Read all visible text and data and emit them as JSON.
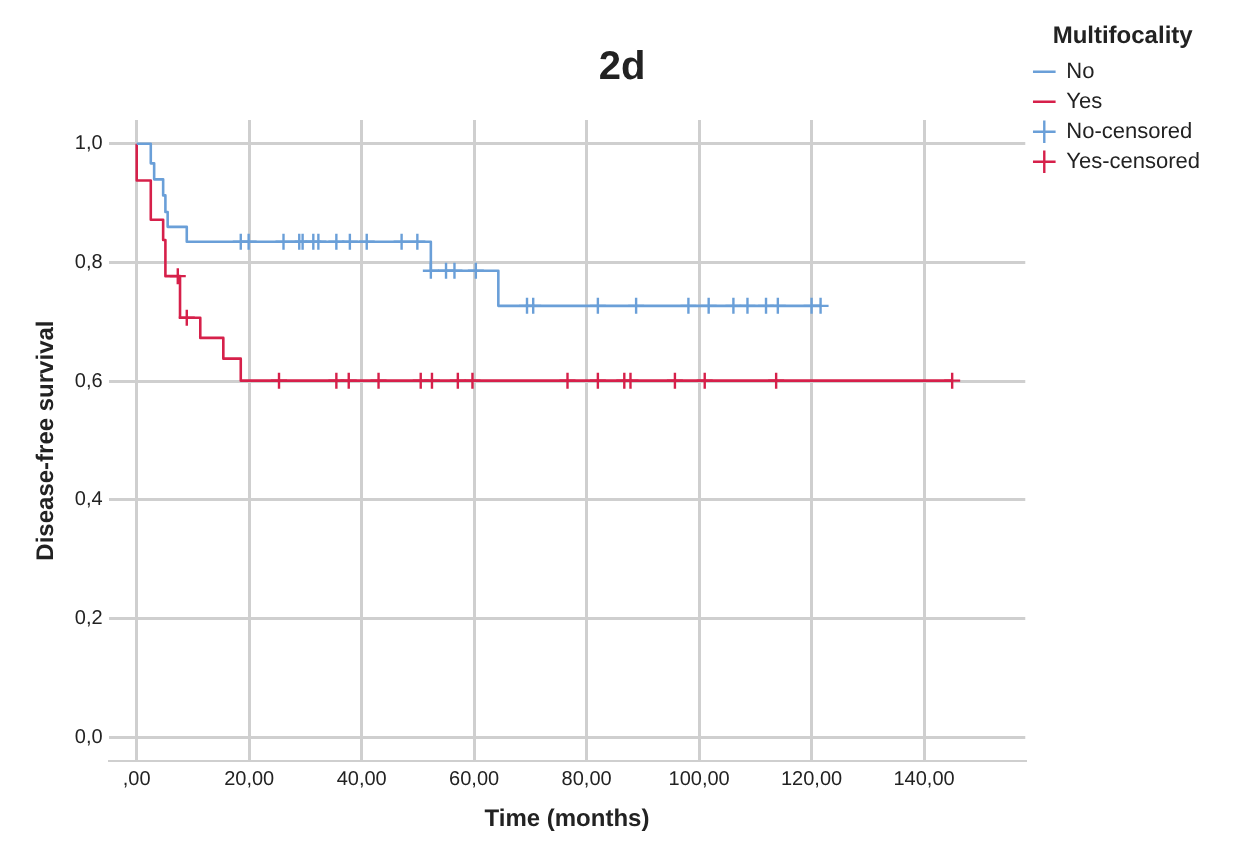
{
  "chart_data": {
    "type": "step",
    "title": "2d",
    "xlabel": "Time (months)",
    "ylabel": "Disease-free survival",
    "legend_title": "Multifocality",
    "legend": "top right",
    "grid": true,
    "xlim": [
      -5,
      158
    ],
    "ylim": [
      -0.04,
      1.04
    ],
    "xticks": [
      {
        "value": 0,
        "label": ",00"
      },
      {
        "value": 20,
        "label": "20,00"
      },
      {
        "value": 40,
        "label": "40,00"
      },
      {
        "value": 60,
        "label": "60,00"
      },
      {
        "value": 80,
        "label": "80,00"
      },
      {
        "value": 100,
        "label": "100,00"
      },
      {
        "value": 120,
        "label": "120,00"
      },
      {
        "value": 140,
        "label": "140,00"
      }
    ],
    "yticks": [
      {
        "value": 0,
        "label": "0,0"
      },
      {
        "value": 0.2,
        "label": "0,2"
      },
      {
        "value": 0.4,
        "label": "0,4"
      },
      {
        "value": 0.6,
        "label": "0,6"
      },
      {
        "value": 0.8,
        "label": "0,8"
      },
      {
        "value": 1,
        "label": "1,0"
      }
    ],
    "series": [
      {
        "name": "No",
        "color": "#6a9fd8",
        "x": [
          0,
          2.5,
          3.1,
          4.7,
          5.1,
          5.5,
          8.9,
          52.3,
          64.3,
          121.6
        ],
        "values": [
          1,
          0.967,
          0.94,
          0.913,
          0.885,
          0.86,
          0.835,
          0.786,
          0.727,
          0.727
        ]
      },
      {
        "name": "Yes",
        "color": "#d6204a",
        "x": [
          0,
          0,
          2.5,
          4.7,
          5.1,
          7.7,
          11.3,
          15.4,
          18.5,
          145
        ],
        "values": [
          1,
          0.938,
          0.872,
          0.838,
          0.777,
          0.707,
          0.673,
          0.638,
          0.601,
          0.601
        ]
      },
      {
        "name": "No-censored",
        "type": "scatter",
        "marker": "cross",
        "color": "#6a9fd8",
        "x": [
          18.5,
          19.9,
          26.1,
          28.9,
          29.5,
          31.4,
          32.3,
          35.5,
          37.9,
          40.9,
          47.1,
          49.9,
          52.3,
          55,
          56.5,
          60.3,
          69.4,
          70.5,
          82,
          88.8,
          98.1,
          101.7,
          106.1,
          108.6,
          111.9,
          114,
          120,
          121.6
        ],
        "values": [
          0.835,
          0.835,
          0.835,
          0.835,
          0.835,
          0.835,
          0.835,
          0.835,
          0.835,
          0.835,
          0.835,
          0.835,
          0.786,
          0.786,
          0.786,
          0.786,
          0.727,
          0.727,
          0.727,
          0.727,
          0.727,
          0.727,
          0.727,
          0.727,
          0.727,
          0.727,
          0.727,
          0.727
        ]
      },
      {
        "name": "Yes-censored",
        "type": "scatter",
        "marker": "cross",
        "color": "#d6204a",
        "x": [
          7.3,
          8.9,
          25.3,
          35.5,
          37.7,
          43,
          50.5,
          52.5,
          57.1,
          59.7,
          76.6,
          82,
          86.7,
          87.8,
          95.7,
          101,
          113.7,
          145
        ],
        "values": [
          0.777,
          0.707,
          0.601,
          0.601,
          0.601,
          0.601,
          0.601,
          0.601,
          0.601,
          0.601,
          0.601,
          0.601,
          0.601,
          0.601,
          0.601,
          0.601,
          0.601,
          0.601
        ]
      }
    ]
  }
}
